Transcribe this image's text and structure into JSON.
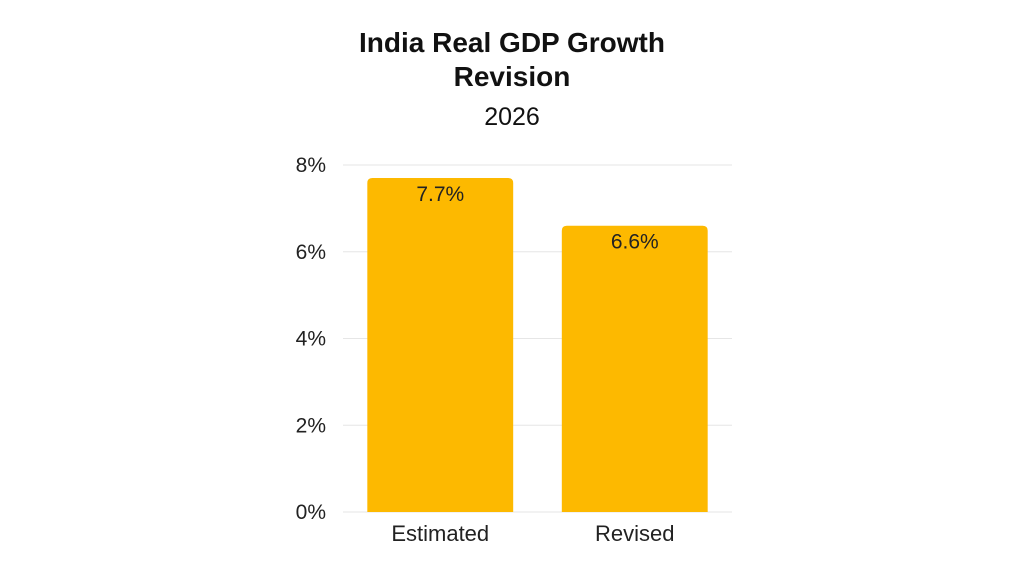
{
  "chart_data": {
    "type": "bar",
    "title_lines": [
      "India Real GDP Growth",
      "Revision"
    ],
    "subtitle": "2026",
    "categories": [
      "Estimated",
      "Revised"
    ],
    "values": [
      7.7,
      6.6
    ],
    "data_labels": [
      "7.7%",
      "6.6%"
    ],
    "yticks": [
      "0%",
      "2%",
      "4%",
      "6%",
      "8%"
    ],
    "ytick_values": [
      0,
      2,
      4,
      6,
      8
    ],
    "ylim": [
      0,
      8
    ],
    "bar_color": "#FDB900",
    "grid_color": "#E6E6E6",
    "grid": true,
    "legend": "none"
  }
}
